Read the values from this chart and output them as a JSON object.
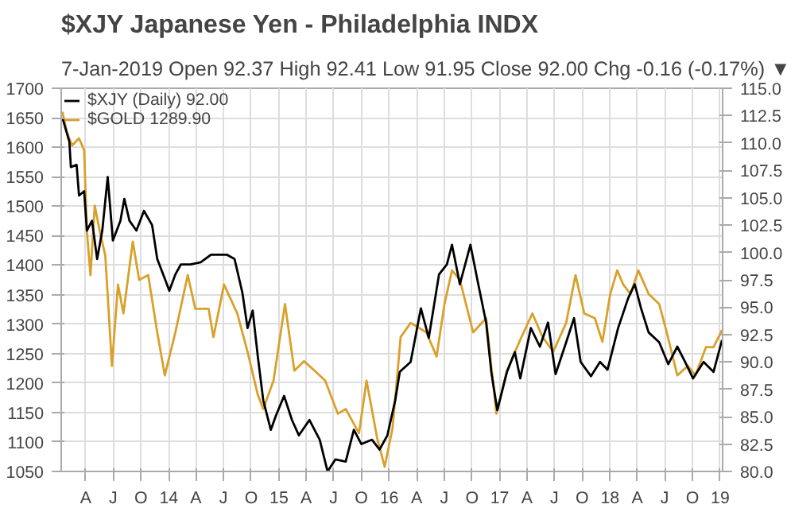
{
  "chart_data": {
    "type": "line",
    "title": "$XJY Japanese Yen - Philadelphia INDX",
    "subtitle": "7-Jan-2019   Open 92.37  High 92.41  Low 91.95  Close 92.00  Chg -0.16 (-0.17%) ▼",
    "xlim": [
      "2013-01-10",
      "2019-01-09"
    ],
    "xticks": [
      {
        "value": "2013-04-01",
        "label": "A"
      },
      {
        "value": "2013-07-01",
        "label": "J"
      },
      {
        "value": "2013-10-01",
        "label": "O"
      },
      {
        "value": "2014-01-01",
        "label": "14"
      },
      {
        "value": "2014-04-01",
        "label": "A"
      },
      {
        "value": "2014-07-01",
        "label": "J"
      },
      {
        "value": "2014-10-01",
        "label": "O"
      },
      {
        "value": "2015-01-01",
        "label": "15"
      },
      {
        "value": "2015-04-01",
        "label": "A"
      },
      {
        "value": "2015-07-01",
        "label": "J"
      },
      {
        "value": "2015-10-01",
        "label": "O"
      },
      {
        "value": "2016-01-01",
        "label": "16"
      },
      {
        "value": "2016-04-01",
        "label": "A"
      },
      {
        "value": "2016-07-01",
        "label": "J"
      },
      {
        "value": "2016-10-01",
        "label": "O"
      },
      {
        "value": "2017-01-01",
        "label": "17"
      },
      {
        "value": "2017-04-01",
        "label": "A"
      },
      {
        "value": "2017-07-01",
        "label": "J"
      },
      {
        "value": "2017-10-01",
        "label": "O"
      },
      {
        "value": "2018-01-01",
        "label": "18"
      },
      {
        "value": "2018-04-01",
        "label": "A"
      },
      {
        "value": "2018-07-01",
        "label": "J"
      },
      {
        "value": "2018-10-01",
        "label": "O"
      },
      {
        "value": "2019-01-01",
        "label": "19"
      }
    ],
    "ylim": [
      1050,
      1700
    ],
    "yticks": [
      1050,
      1100,
      1150,
      1200,
      1250,
      1300,
      1350,
      1400,
      1450,
      1500,
      1550,
      1600,
      1650,
      1700
    ],
    "y2lim": [
      80,
      115
    ],
    "y2ticks": [
      {
        "value": 80,
        "label": "80.0"
      },
      {
        "value": 82.5,
        "label": "82.5"
      },
      {
        "value": 85,
        "label": "85.0"
      },
      {
        "value": 87.5,
        "label": "87.5"
      },
      {
        "value": 90,
        "label": "90.0"
      },
      {
        "value": 92.5,
        "label": "92.5"
      },
      {
        "value": 95,
        "label": "95.0"
      },
      {
        "value": 97.5,
        "label": "97.5"
      },
      {
        "value": 100,
        "label": "100.0"
      },
      {
        "value": 102.5,
        "label": "102.5"
      },
      {
        "value": 105,
        "label": "105.0"
      },
      {
        "value": 107.5,
        "label": "107.5"
      },
      {
        "value": 110,
        "label": "110.0"
      },
      {
        "value": 112.5,
        "label": "112.5"
      },
      {
        "value": 115,
        "label": "115.0"
      }
    ],
    "grid": true,
    "legend": "top left",
    "series": [
      {
        "name": "$XJY (Daily) 92.00",
        "color": "#000000",
        "axis": "y2",
        "x": [
          "2013-01-14",
          "2013-02-06",
          "2013-02-11",
          "2013-03-02",
          "2013-03-10",
          "2013-03-27",
          "2013-04-05",
          "2013-04-22",
          "2013-05-09",
          "2013-05-26",
          "2013-06-13",
          "2013-06-30",
          "2013-07-25",
          "2013-08-07",
          "2013-08-24",
          "2013-09-16",
          "2013-10-11",
          "2013-11-07",
          "2013-11-24",
          "2013-12-19",
          "2014-01-03",
          "2014-01-23",
          "2014-02-10",
          "2014-03-14",
          "2014-04-17",
          "2014-05-21",
          "2014-07-12",
          "2014-08-07",
          "2014-09-02",
          "2014-09-19",
          "2014-10-06",
          "2014-10-23",
          "2014-11-10",
          "2014-12-05",
          "2014-12-22",
          "2015-01-18",
          "2015-02-13",
          "2015-03-08",
          "2015-04-12",
          "2015-05-16",
          "2015-06-11",
          "2015-07-07",
          "2015-08-10",
          "2015-09-06",
          "2015-10-01",
          "2015-11-05",
          "2015-11-30",
          "2015-12-26",
          "2016-01-21",
          "2016-02-05",
          "2016-03-12",
          "2016-04-15",
          "2016-05-11",
          "2016-06-14",
          "2016-07-10",
          "2016-07-27",
          "2016-08-22",
          "2016-09-26",
          "2016-10-22",
          "2016-11-17",
          "2016-12-04",
          "2016-12-24",
          "2017-01-25",
          "2017-02-20",
          "2017-03-10",
          "2017-04-14",
          "2017-05-14",
          "2017-06-10",
          "2017-07-05",
          "2017-08-09",
          "2017-09-04",
          "2017-09-26",
          "2017-10-30",
          "2017-11-29",
          "2017-12-24",
          "2018-01-28",
          "2018-03-02",
          "2018-03-24",
          "2018-04-14",
          "2018-05-09",
          "2018-06-13",
          "2018-07-13",
          "2018-08-12",
          "2018-09-07",
          "2018-10-03",
          "2018-11-07",
          "2018-12-10",
          "2019-01-07"
        ],
        "values": [
          112.3,
          110.1,
          107.8,
          108.0,
          105.2,
          105.6,
          102.0,
          102.9,
          99.4,
          102.0,
          106.9,
          101.1,
          102.9,
          104.9,
          102.9,
          102.0,
          103.8,
          102.5,
          99.4,
          97.6,
          96.5,
          98.0,
          98.9,
          98.9,
          99.1,
          99.8,
          99.8,
          99.4,
          96.3,
          93.1,
          94.7,
          90.5,
          86.5,
          83.8,
          85.1,
          86.9,
          84.7,
          83.3,
          84.7,
          82.9,
          80.0,
          81.1,
          80.9,
          83.8,
          82.5,
          82.9,
          82.0,
          83.3,
          86.5,
          89.1,
          90.0,
          94.9,
          92.2,
          98.0,
          98.9,
          100.7,
          97.1,
          100.7,
          97.1,
          93.6,
          89.1,
          85.6,
          89.1,
          90.9,
          88.5,
          93.1,
          91.4,
          93.6,
          88.9,
          91.8,
          94.0,
          90.0,
          88.7,
          90.0,
          89.3,
          93.1,
          95.8,
          97.1,
          94.9,
          92.7,
          91.8,
          89.8,
          91.4,
          90.0,
          88.5,
          90.0,
          89.1,
          92.0
        ]
      },
      {
        "name": "$GOLD 1289.90",
        "color": "#d9a02a",
        "x": [
          "2013-01-14",
          "2013-01-28",
          "2013-02-15",
          "2013-03-10",
          "2013-03-27",
          "2013-04-05",
          "2013-04-17",
          "2013-05-01",
          "2013-05-18",
          "2013-06-05",
          "2013-06-27",
          "2013-07-17",
          "2013-08-04",
          "2013-09-04",
          "2013-09-25",
          "2013-10-25",
          "2013-11-24",
          "2013-12-19",
          "2014-01-23",
          "2014-03-05",
          "2014-03-30",
          "2014-05-13",
          "2014-05-29",
          "2014-07-03",
          "2014-08-16",
          "2014-09-19",
          "2014-10-23",
          "2014-11-10",
          "2014-12-14",
          "2015-01-21",
          "2015-02-21",
          "2015-03-25",
          "2015-04-29",
          "2015-06-03",
          "2015-07-15",
          "2015-08-10",
          "2015-09-23",
          "2015-10-18",
          "2015-11-22",
          "2015-12-17",
          "2016-01-12",
          "2016-02-08",
          "2016-03-12",
          "2016-05-03",
          "2016-06-06",
          "2016-07-02",
          "2016-07-27",
          "2016-08-22",
          "2016-10-05",
          "2016-11-17",
          "2016-12-21",
          "2017-01-25",
          "2017-03-07",
          "2017-04-19",
          "2017-05-23",
          "2017-06-27",
          "2017-08-09",
          "2017-09-09",
          "2017-10-08",
          "2017-11-12",
          "2017-12-07",
          "2018-01-02",
          "2018-01-25",
          "2018-02-14",
          "2018-03-10",
          "2018-04-05",
          "2018-05-09",
          "2018-06-13",
          "2018-07-08",
          "2018-08-12",
          "2018-09-16",
          "2018-10-11",
          "2018-11-15",
          "2018-12-10",
          "2019-01-07"
        ],
        "values": [
          1660,
          1627,
          1603,
          1615,
          1595,
          1457,
          1383,
          1501,
          1457,
          1416,
          1229,
          1367,
          1318,
          1440,
          1375,
          1383,
          1286,
          1213,
          1286,
          1383,
          1326,
          1326,
          1278,
          1367,
          1318,
          1253,
          1180,
          1156,
          1204,
          1334,
          1221,
          1237,
          1221,
          1204,
          1148,
          1156,
          1115,
          1204,
          1107,
          1058,
          1123,
          1278,
          1302,
          1286,
          1245,
          1334,
          1391,
          1375,
          1286,
          1310,
          1148,
          1221,
          1270,
          1318,
          1278,
          1253,
          1302,
          1383,
          1318,
          1310,
          1270,
          1351,
          1391,
          1367,
          1351,
          1391,
          1351,
          1334,
          1286,
          1213,
          1229,
          1213,
          1261,
          1261,
          1290
        ]
      }
    ]
  }
}
